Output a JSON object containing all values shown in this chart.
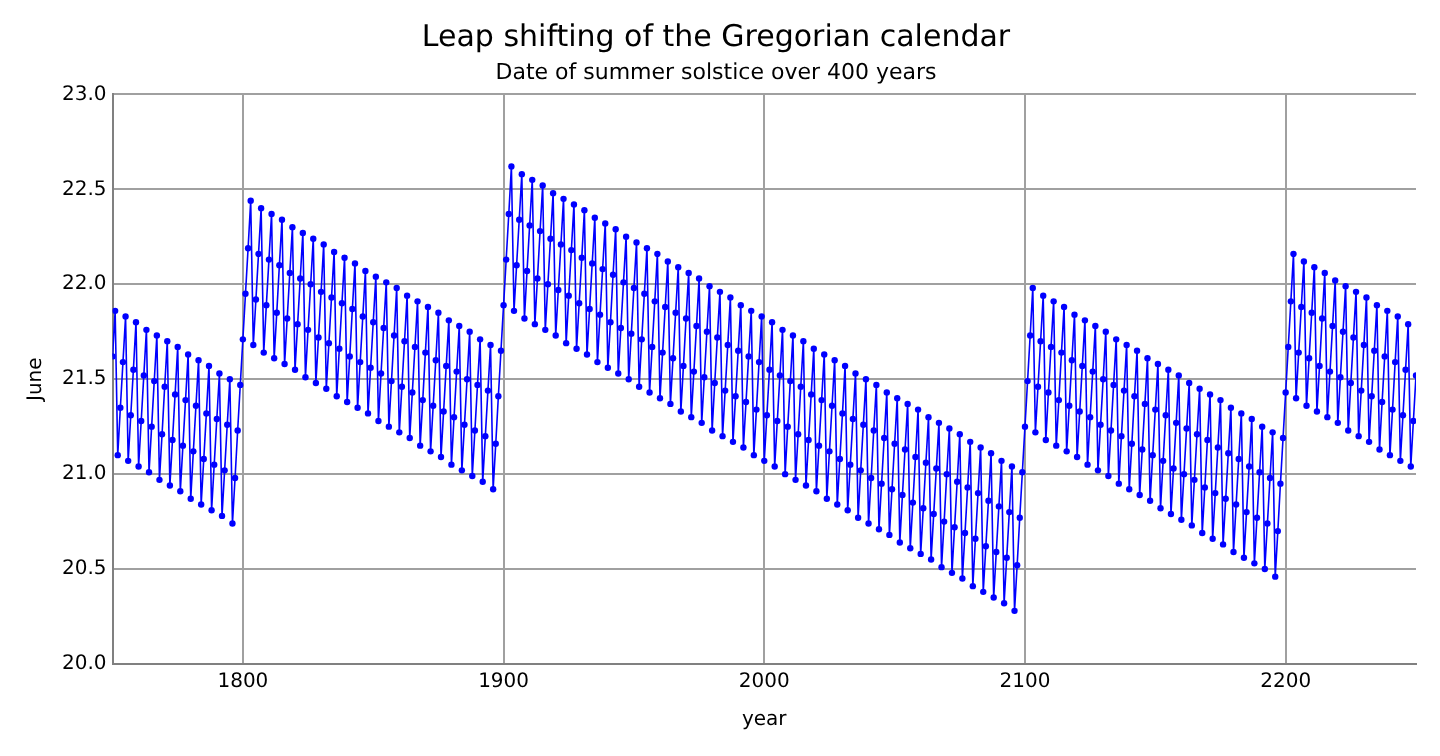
{
  "chart_data": {
    "type": "line",
    "title": "Leap shifting of the Gregorian calendar",
    "subtitle": "Date of summer solstice over 400 years",
    "xlabel": "year",
    "ylabel": "June",
    "xlim": [
      1750,
      2250
    ],
    "xticks": [
      1800,
      1900,
      2000,
      2100,
      2200
    ],
    "ylim": [
      20,
      23
    ],
    "yticks": [
      {
        "value": 20,
        "label": "20.0"
      },
      {
        "value": 20.5,
        "label": "20.5"
      },
      {
        "value": 21,
        "label": "21.0"
      },
      {
        "value": 21.5,
        "label": "21.5"
      },
      {
        "value": 22,
        "label": "22.0"
      },
      {
        "value": 22.5,
        "label": "22.5"
      },
      {
        "value": 23,
        "label": "23.0"
      }
    ],
    "grid": true,
    "legend": false,
    "marker": "circle",
    "line_style": "solid",
    "x": [
      1750,
      1751,
      1752,
      1753,
      1754,
      1755,
      1756,
      1757,
      1758,
      1759,
      1760,
      1761,
      1762,
      1763,
      1764,
      1765,
      1766,
      1767,
      1768,
      1769,
      1770,
      1771,
      1772,
      1773,
      1774,
      1775,
      1776,
      1777,
      1778,
      1779,
      1780,
      1781,
      1782,
      1783,
      1784,
      1785,
      1786,
      1787,
      1788,
      1789,
      1790,
      1791,
      1792,
      1793,
      1794,
      1795,
      1796,
      1797,
      1798,
      1799,
      1800,
      1801,
      1802,
      1803,
      1804,
      1805,
      1806,
      1807,
      1808,
      1809,
      1810,
      1811,
      1812,
      1813,
      1814,
      1815,
      1816,
      1817,
      1818,
      1819,
      1820,
      1821,
      1822,
      1823,
      1824,
      1825,
      1826,
      1827,
      1828,
      1829,
      1830,
      1831,
      1832,
      1833,
      1834,
      1835,
      1836,
      1837,
      1838,
      1839,
      1840,
      1841,
      1842,
      1843,
      1844,
      1845,
      1846,
      1847,
      1848,
      1849,
      1850,
      1851,
      1852,
      1853,
      1854,
      1855,
      1856,
      1857,
      1858,
      1859,
      1860,
      1861,
      1862,
      1863,
      1864,
      1865,
      1866,
      1867,
      1868,
      1869,
      1870,
      1871,
      1872,
      1873,
      1874,
      1875,
      1876,
      1877,
      1878,
      1879,
      1880,
      1881,
      1882,
      1883,
      1884,
      1885,
      1886,
      1887,
      1888,
      1889,
      1890,
      1891,
      1892,
      1893,
      1894,
      1895,
      1896,
      1897,
      1898,
      1899,
      1900,
      1901,
      1902,
      1903,
      1904,
      1905,
      1906,
      1907,
      1908,
      1909,
      1910,
      1911,
      1912,
      1913,
      1914,
      1915,
      1916,
      1917,
      1918,
      1919,
      1920,
      1921,
      1922,
      1923,
      1924,
      1925,
      1926,
      1927,
      1928,
      1929,
      1930,
      1931,
      1932,
      1933,
      1934,
      1935,
      1936,
      1937,
      1938,
      1939,
      1940,
      1941,
      1942,
      1943,
      1944,
      1945,
      1946,
      1947,
      1948,
      1949,
      1950,
      1951,
      1952,
      1953,
      1954,
      1955,
      1956,
      1957,
      1958,
      1959,
      1960,
      1961,
      1962,
      1963,
      1964,
      1965,
      1966,
      1967,
      1968,
      1969,
      1970,
      1971,
      1972,
      1973,
      1974,
      1975,
      1976,
      1977,
      1978,
      1979,
      1980,
      1981,
      1982,
      1983,
      1984,
      1985,
      1986,
      1987,
      1988,
      1989,
      1990,
      1991,
      1992,
      1993,
      1994,
      1995,
      1996,
      1997,
      1998,
      1999,
      2000,
      2001,
      2002,
      2003,
      2004,
      2005,
      2006,
      2007,
      2008,
      2009,
      2010,
      2011,
      2012,
      2013,
      2014,
      2015,
      2016,
      2017,
      2018,
      2019,
      2020,
      2021,
      2022,
      2023,
      2024,
      2025,
      2026,
      2027,
      2028,
      2029,
      2030,
      2031,
      2032,
      2033,
      2034,
      2035,
      2036,
      2037,
      2038,
      2039,
      2040,
      2041,
      2042,
      2043,
      2044,
      2045,
      2046,
      2047,
      2048,
      2049,
      2050,
      2051,
      2052,
      2053,
      2054,
      2055,
      2056,
      2057,
      2058,
      2059,
      2060,
      2061,
      2062,
      2063,
      2064,
      2065,
      2066,
      2067,
      2068,
      2069,
      2070,
      2071,
      2072,
      2073,
      2074,
      2075,
      2076,
      2077,
      2078,
      2079,
      2080,
      2081,
      2082,
      2083,
      2084,
      2085,
      2086,
      2087,
      2088,
      2089,
      2090,
      2091,
      2092,
      2093,
      2094,
      2095,
      2096,
      2097,
      2098,
      2099,
      2100,
      2101,
      2102,
      2103,
      2104,
      2105,
      2106,
      2107,
      2108,
      2109,
      2110,
      2111,
      2112,
      2113,
      2114,
      2115,
      2116,
      2117,
      2118,
      2119,
      2120,
      2121,
      2122,
      2123,
      2124,
      2125,
      2126,
      2127,
      2128,
      2129,
      2130,
      2131,
      2132,
      2133,
      2134,
      2135,
      2136,
      2137,
      2138,
      2139,
      2140,
      2141,
      2142,
      2143,
      2144,
      2145,
      2146,
      2147,
      2148,
      2149,
      2150,
      2151,
      2152,
      2153,
      2154,
      2155,
      2156,
      2157,
      2158,
      2159,
      2160,
      2161,
      2162,
      2163,
      2164,
      2165,
      2166,
      2167,
      2168,
      2169,
      2170,
      2171,
      2172,
      2173,
      2174,
      2175,
      2176,
      2177,
      2178,
      2179,
      2180,
      2181,
      2182,
      2183,
      2184,
      2185,
      2186,
      2187,
      2188,
      2189,
      2190,
      2191,
      2192,
      2193,
      2194,
      2195,
      2196,
      2197,
      2198,
      2199,
      2200,
      2201,
      2202,
      2203,
      2204,
      2205,
      2206,
      2207,
      2208,
      2209,
      2210,
      2211,
      2212,
      2213,
      2214,
      2215,
      2216,
      2217,
      2218,
      2219,
      2220,
      2221,
      2222,
      2223,
      2224,
      2225,
      2226,
      2227,
      2228,
      2229,
      2230,
      2231,
      2232,
      2233,
      2234,
      2235,
      2236,
      2237,
      2238,
      2239,
      2240,
      2241,
      2242,
      2243,
      2244,
      2245,
      2246,
      2247,
      2248,
      2249,
      2250
    ],
    "series": [
      {
        "color": "#0000ff",
        "values": [
          21.62,
          21.86,
          21.1,
          21.35,
          21.59,
          21.83,
          21.07,
          21.31,
          21.55,
          21.8,
          21.04,
          21.28,
          21.52,
          21.76,
          21.01,
          21.25,
          21.49,
          21.73,
          20.97,
          21.21,
          21.46,
          21.7,
          20.94,
          21.18,
          21.42,
          21.67,
          20.91,
          21.15,
          21.39,
          21.63,
          20.87,
          21.12,
          21.36,
          21.6,
          20.84,
          21.08,
          21.32,
          21.57,
          20.81,
          21.05,
          21.29,
          21.53,
          20.78,
          21.02,
          21.26,
          21.5,
          20.74,
          20.98,
          21.23,
          21.47,
          21.71,
          21.95,
          22.19,
          22.44,
          21.68,
          21.92,
          22.16,
          22.4,
          21.64,
          21.89,
          22.13,
          22.37,
          21.61,
          21.85,
          22.1,
          22.34,
          21.58,
          21.82,
          22.06,
          22.3,
          21.55,
          21.79,
          22.03,
          22.27,
          21.51,
          21.76,
          22.0,
          22.24,
          21.48,
          21.72,
          21.96,
          22.21,
          21.45,
          21.69,
          21.93,
          22.17,
          21.41,
          21.66,
          21.9,
          22.14,
          21.38,
          21.62,
          21.87,
          22.11,
          21.35,
          21.59,
          21.83,
          22.07,
          21.32,
          21.56,
          21.8,
          22.04,
          21.28,
          21.53,
          21.77,
          22.01,
          21.25,
          21.49,
          21.73,
          21.98,
          21.22,
          21.46,
          21.7,
          21.94,
          21.19,
          21.43,
          21.67,
          21.91,
          21.15,
          21.39,
          21.64,
          21.88,
          21.12,
          21.36,
          21.6,
          21.85,
          21.09,
          21.33,
          21.57,
          21.81,
          21.05,
          21.3,
          21.54,
          21.78,
          21.02,
          21.26,
          21.5,
          21.75,
          20.99,
          21.23,
          21.47,
          21.71,
          20.96,
          21.2,
          21.44,
          21.68,
          20.92,
          21.16,
          21.41,
          21.65,
          21.89,
          22.13,
          22.37,
          22.62,
          21.86,
          22.1,
          22.34,
          22.58,
          21.82,
          22.07,
          22.31,
          22.55,
          21.79,
          22.03,
          22.28,
          22.52,
          21.76,
          22.0,
          22.24,
          22.48,
          21.73,
          21.97,
          22.21,
          22.45,
          21.69,
          21.94,
          22.18,
          22.42,
          21.66,
          21.9,
          22.14,
          22.39,
          21.63,
          21.87,
          22.11,
          22.35,
          21.59,
          21.84,
          22.08,
          22.32,
          21.56,
          21.8,
          22.05,
          22.29,
          21.53,
          21.77,
          22.01,
          22.25,
          21.5,
          21.74,
          21.98,
          22.22,
          21.46,
          21.71,
          21.95,
          22.19,
          21.43,
          21.67,
          21.91,
          22.16,
          21.4,
          21.64,
          21.88,
          22.12,
          21.37,
          21.61,
          21.85,
          22.09,
          21.33,
          21.57,
          21.82,
          22.06,
          21.3,
          21.54,
          21.78,
          22.03,
          21.27,
          21.51,
          21.75,
          21.99,
          21.23,
          21.48,
          21.72,
          21.96,
          21.2,
          21.44,
          21.68,
          21.93,
          21.17,
          21.41,
          21.65,
          21.89,
          21.14,
          21.38,
          21.62,
          21.86,
          21.1,
          21.34,
          21.59,
          21.83,
          21.07,
          21.31,
          21.55,
          21.8,
          21.04,
          21.28,
          21.52,
          21.76,
          21.0,
          21.25,
          21.49,
          21.73,
          20.97,
          21.21,
          21.46,
          21.7,
          20.94,
          21.18,
          21.42,
          21.66,
          20.91,
          21.15,
          21.39,
          21.63,
          20.87,
          21.12,
          21.36,
          21.6,
          20.84,
          21.08,
          21.32,
          21.57,
          20.81,
          21.05,
          21.29,
          21.53,
          20.77,
          21.02,
          21.26,
          21.5,
          20.74,
          20.98,
          21.23,
          21.47,
          20.71,
          20.95,
          21.19,
          21.43,
          20.68,
          20.92,
          21.16,
          21.4,
          20.64,
          20.89,
          21.13,
          21.37,
          20.61,
          20.85,
          21.09,
          21.34,
          20.58,
          20.82,
          21.06,
          21.3,
          20.55,
          20.79,
          21.03,
          21.27,
          20.51,
          20.75,
          21.0,
          21.24,
          20.48,
          20.72,
          20.96,
          21.21,
          20.45,
          20.69,
          20.93,
          21.17,
          20.41,
          20.66,
          20.9,
          21.14,
          20.38,
          20.62,
          20.86,
          21.11,
          20.35,
          20.59,
          20.83,
          21.07,
          20.32,
          20.56,
          20.8,
          21.04,
          20.28,
          20.52,
          20.77,
          21.01,
          21.25,
          21.49,
          21.73,
          21.98,
          21.22,
          21.46,
          21.7,
          21.94,
          21.18,
          21.43,
          21.67,
          21.91,
          21.15,
          21.39,
          21.64,
          21.88,
          21.12,
          21.36,
          21.6,
          21.84,
          21.09,
          21.33,
          21.57,
          21.81,
          21.05,
          21.3,
          21.54,
          21.78,
          21.02,
          21.26,
          21.5,
          21.75,
          20.99,
          21.23,
          21.47,
          21.71,
          20.95,
          21.2,
          21.44,
          21.68,
          20.92,
          21.16,
          21.41,
          21.65,
          20.89,
          21.13,
          21.37,
          21.61,
          20.86,
          21.1,
          21.34,
          21.58,
          20.82,
          21.07,
          21.31,
          21.55,
          20.79,
          21.03,
          21.27,
          21.52,
          20.76,
          21.0,
          21.24,
          21.48,
          20.73,
          20.97,
          21.21,
          21.45,
          20.69,
          20.93,
          21.18,
          21.42,
          20.66,
          20.9,
          21.14,
          21.39,
          20.63,
          20.87,
          21.11,
          21.35,
          20.59,
          20.84,
          21.08,
          21.32,
          20.56,
          20.8,
          21.04,
          21.29,
          20.53,
          20.77,
          21.01,
          21.25,
          20.5,
          20.74,
          20.98,
          21.22,
          20.46,
          20.7,
          20.95,
          21.19,
          21.43,
          21.67,
          21.91,
          22.16,
          21.4,
          21.64,
          21.88,
          22.12,
          21.36,
          21.61,
          21.85,
          22.09,
          21.33,
          21.57,
          21.82,
          22.06,
          21.3,
          21.54,
          21.78,
          22.02,
          21.27,
          21.51,
          21.75,
          21.99,
          21.23,
          21.48,
          21.72,
          21.96,
          21.2,
          21.44,
          21.68,
          21.93,
          21.17,
          21.41,
          21.65,
          21.89,
          21.13,
          21.38,
          21.62,
          21.86,
          21.1,
          21.34,
          21.59,
          21.83,
          21.07,
          21.31,
          21.55,
          21.79,
          21.04,
          21.28,
          21.52
        ]
      }
    ]
  }
}
